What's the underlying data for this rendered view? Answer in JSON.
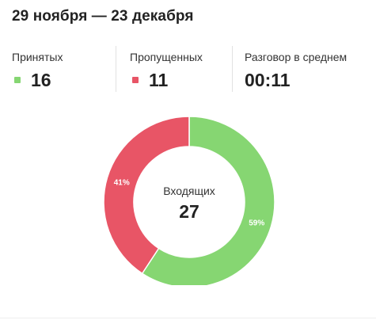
{
  "header": {
    "title": "29 ноября — 23 декабря"
  },
  "stats": [
    {
      "label": "Принятых",
      "value": "16",
      "color": "#86d672",
      "icon": "green-square-icon"
    },
    {
      "label": "Пропущенных",
      "value": "11",
      "color": "#e85566",
      "icon": "red-square-icon"
    },
    {
      "label": "Разговор в среднем",
      "value": "00:11"
    }
  ],
  "chart_data": {
    "type": "pie",
    "subtype": "donut",
    "center_label": "Входящих",
    "center_value": "27",
    "slices": [
      {
        "label": "59%",
        "value": 16,
        "percent": 59,
        "color": "#86d672"
      },
      {
        "label": "41%",
        "value": 11,
        "percent": 41,
        "color": "#e85566"
      }
    ],
    "start": "top",
    "direction": "clockwise"
  }
}
